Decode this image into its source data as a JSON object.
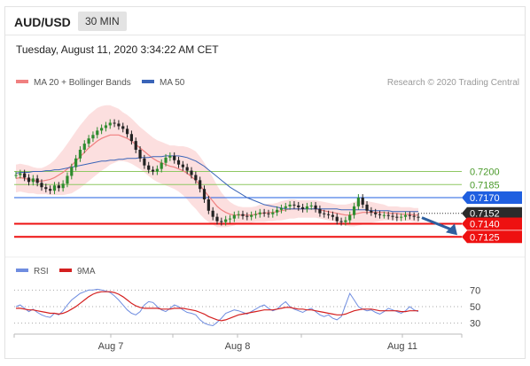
{
  "header": {
    "symbol": "AUD/USD",
    "timeframe": "30 MIN",
    "timestamp": "Tuesday, August 11, 2020 3:34:22 AM CET"
  },
  "credit": "Research © 2020 Trading Central",
  "colors": {
    "ma20": "#f08080",
    "ma50": "#3a64b8",
    "support": "#ee1111",
    "resistance": "#1f5fe0",
    "target_green": "#8fc862",
    "arrow": "#2e5f9e",
    "rsi": "#6f8de0",
    "rsi_ma": "#d42020",
    "bands": "#fbd9d9"
  },
  "chart_data": [
    {
      "type": "line",
      "subtype": "candlestick",
      "legend": [
        {
          "name": "MA 20 + Bollinger Bands",
          "color": "#f08080"
        },
        {
          "name": "MA 50",
          "color": "#3a64b8"
        }
      ],
      "x_ticks": [
        "Aug 7",
        "Aug 8",
        "Aug 11"
      ],
      "ylim": [
        0.711,
        0.7285
      ],
      "levels": [
        {
          "value": 0.72,
          "label": "0.7200",
          "kind": "target"
        },
        {
          "value": 0.7185,
          "label": "0.7185",
          "kind": "target"
        },
        {
          "value": 0.717,
          "label": "0.7170",
          "kind": "resistance"
        },
        {
          "value": 0.7152,
          "label": "0.7152",
          "kind": "last"
        },
        {
          "value": 0.714,
          "label": "0.7140",
          "kind": "support"
        },
        {
          "value": 0.7125,
          "label": "0.7125",
          "kind": "support"
        }
      ],
      "price": [
        0.7196,
        0.7198,
        0.7193,
        0.7188,
        0.7192,
        0.7187,
        0.7182,
        0.718,
        0.7178,
        0.7184,
        0.7181,
        0.7186,
        0.7195,
        0.7205,
        0.7215,
        0.7225,
        0.7232,
        0.7238,
        0.7242,
        0.7247,
        0.725,
        0.7253,
        0.7256,
        0.7255,
        0.7252,
        0.7249,
        0.7243,
        0.7235,
        0.7225,
        0.7215,
        0.7207,
        0.7202,
        0.72,
        0.7203,
        0.721,
        0.7216,
        0.7218,
        0.7213,
        0.7208,
        0.7205,
        0.7201,
        0.7196,
        0.719,
        0.718,
        0.7168,
        0.7155,
        0.7148,
        0.7143,
        0.7142,
        0.7145,
        0.7146,
        0.715,
        0.7151,
        0.7149,
        0.7148,
        0.715,
        0.7151,
        0.7153,
        0.7152,
        0.7151,
        0.7153,
        0.7156,
        0.7158,
        0.716,
        0.7162,
        0.7161,
        0.7159,
        0.7157,
        0.716,
        0.7161,
        0.7157,
        0.7152,
        0.7151,
        0.715,
        0.7148,
        0.7143,
        0.7142,
        0.7144,
        0.715,
        0.716,
        0.717,
        0.7162,
        0.7155,
        0.7153,
        0.7151,
        0.715,
        0.715,
        0.7149,
        0.7148,
        0.7147,
        0.7148,
        0.715,
        0.7149,
        0.7148,
        0.7147
      ],
      "ma20": [
        0.7192,
        0.7193,
        0.7192,
        0.7191,
        0.719,
        0.7189,
        0.7189,
        0.719,
        0.7191,
        0.7193,
        0.7196,
        0.7199,
        0.7203,
        0.7207,
        0.7212,
        0.7217,
        0.7222,
        0.7227,
        0.7231,
        0.7235,
        0.7238,
        0.724,
        0.7242,
        0.7242,
        0.7242,
        0.724,
        0.7238,
        0.7235,
        0.7231,
        0.7227,
        0.7223,
        0.7219,
        0.7215,
        0.7212,
        0.721,
        0.7208,
        0.7206,
        0.7205,
        0.7203,
        0.7201,
        0.7198,
        0.7194,
        0.719,
        0.7184,
        0.7178,
        0.7172,
        0.7166,
        0.716,
        0.7156,
        0.7153,
        0.7151,
        0.715,
        0.715,
        0.715,
        0.715,
        0.715,
        0.7151,
        0.7152,
        0.7152,
        0.7153,
        0.7153,
        0.7154,
        0.7155,
        0.7156,
        0.7157,
        0.7157,
        0.7157,
        0.7157,
        0.7157,
        0.7157,
        0.7157,
        0.7156,
        0.7155,
        0.7154,
        0.7153,
        0.7152,
        0.7151,
        0.715,
        0.715,
        0.7151,
        0.7152,
        0.7153,
        0.7153,
        0.7153,
        0.7153,
        0.7153,
        0.7153,
        0.7152,
        0.7152,
        0.7152,
        0.7151,
        0.7151,
        0.7151,
        0.715,
        0.715
      ],
      "band_width": [
        0.0016,
        0.0016,
        0.0016,
        0.0016,
        0.0015,
        0.0015,
        0.0015,
        0.0016,
        0.0018,
        0.002,
        0.0023,
        0.0026,
        0.0029,
        0.0032,
        0.0034,
        0.0036,
        0.0037,
        0.0038,
        0.0038,
        0.0038,
        0.0037,
        0.0036,
        0.0034,
        0.0032,
        0.003,
        0.0028,
        0.0027,
        0.0026,
        0.0025,
        0.0024,
        0.0024,
        0.0024,
        0.0024,
        0.0024,
        0.0024,
        0.0024,
        0.0024,
        0.0025,
        0.0026,
        0.0028,
        0.003,
        0.0032,
        0.0033,
        0.0033,
        0.0032,
        0.003,
        0.0027,
        0.0024,
        0.002,
        0.0017,
        0.0014,
        0.0012,
        0.001,
        0.0009,
        0.0009,
        0.0009,
        0.0009,
        0.001,
        0.001,
        0.001,
        0.001,
        0.001,
        0.0011,
        0.0011,
        0.0011,
        0.0011,
        0.001,
        0.001,
        0.001,
        0.001,
        0.001,
        0.001,
        0.001,
        0.001,
        0.001,
        0.001,
        0.0011,
        0.0012,
        0.0013,
        0.0014,
        0.0014,
        0.0014,
        0.0013,
        0.0012,
        0.0011,
        0.001,
        0.0009,
        0.0008,
        0.0008,
        0.0008,
        0.0008,
        0.0008,
        0.0008,
        0.0008,
        0.0008
      ],
      "ma50": [
        0.7198,
        0.7199,
        0.7199,
        0.7199,
        0.72,
        0.72,
        0.72,
        0.7201,
        0.7201,
        0.7202,
        0.7202,
        0.7203,
        0.7204,
        0.7205,
        0.7206,
        0.7207,
        0.7208,
        0.7209,
        0.721,
        0.7211,
        0.7212,
        0.7212,
        0.7213,
        0.7213,
        0.7214,
        0.7214,
        0.7215,
        0.7215,
        0.7215,
        0.7216,
        0.7216,
        0.7216,
        0.7217,
        0.7217,
        0.7217,
        0.7218,
        0.7218,
        0.7218,
        0.7218,
        0.7217,
        0.7216,
        0.7214,
        0.7212,
        0.7209,
        0.7206,
        0.7202,
        0.7198,
        0.7194,
        0.719,
        0.7186,
        0.7182,
        0.7179,
        0.7176,
        0.7173,
        0.717,
        0.7168,
        0.7166,
        0.7164,
        0.7162,
        0.7161,
        0.716,
        0.7159,
        0.7158,
        0.7157,
        0.7157,
        0.7157,
        0.7157,
        0.7157,
        0.7157,
        0.7157,
        0.7157,
        0.7157,
        0.7157,
        0.7157,
        0.7157,
        0.7157,
        0.7156,
        0.7156,
        0.7156,
        0.7156,
        0.7156,
        0.7156,
        0.7156,
        0.7155,
        0.7155,
        0.7155,
        0.7155,
        0.7155,
        0.7154,
        0.7154,
        0.7154,
        0.7154,
        0.7154,
        0.7154,
        0.7154
      ]
    },
    {
      "type": "line",
      "legend": [
        {
          "name": "RSI",
          "color": "#6f8de0"
        },
        {
          "name": "9MA",
          "color": "#d42020"
        }
      ],
      "ylim": [
        20,
        80
      ],
      "y_ticks": [
        70,
        50,
        30
      ],
      "series": [
        {
          "name": "RSI",
          "values": [
            50,
            52,
            48,
            44,
            47,
            43,
            40,
            38,
            37,
            42,
            40,
            45,
            52,
            58,
            62,
            66,
            68,
            70,
            70,
            71,
            70,
            69,
            67,
            63,
            58,
            52,
            46,
            42,
            40,
            44,
            52,
            56,
            55,
            50,
            46,
            44,
            48,
            52,
            50,
            46,
            43,
            42,
            40,
            34,
            30,
            28,
            27,
            31,
            36,
            42,
            44,
            46,
            45,
            43,
            41,
            44,
            47,
            50,
            52,
            48,
            45,
            47,
            52,
            56,
            50,
            47,
            45,
            43,
            46,
            48,
            44,
            40,
            38,
            40,
            36,
            34,
            38,
            52,
            66,
            58,
            50,
            47,
            45,
            46,
            43,
            41,
            44,
            48,
            46,
            44,
            42,
            45,
            50,
            46,
            44
          ]
        },
        {
          "name": "9MA",
          "values": [
            48,
            48,
            47,
            46,
            46,
            45,
            44,
            43,
            42,
            42,
            41,
            42,
            44,
            47,
            50,
            54,
            58,
            62,
            65,
            67,
            68,
            68,
            68,
            67,
            65,
            62,
            58,
            54,
            51,
            49,
            48,
            48,
            48,
            48,
            47,
            47,
            47,
            48,
            48,
            48,
            47,
            46,
            45,
            43,
            41,
            38,
            36,
            34,
            33,
            34,
            36,
            38,
            40,
            41,
            42,
            43,
            44,
            45,
            46,
            46,
            46,
            47,
            48,
            49,
            49,
            48,
            47,
            47,
            46,
            46,
            45,
            44,
            43,
            42,
            41,
            40,
            40,
            41,
            43,
            45,
            46,
            47,
            47,
            47,
            46,
            45,
            45,
            45,
            45,
            45,
            44,
            44,
            45,
            45,
            45
          ]
        }
      ]
    }
  ]
}
